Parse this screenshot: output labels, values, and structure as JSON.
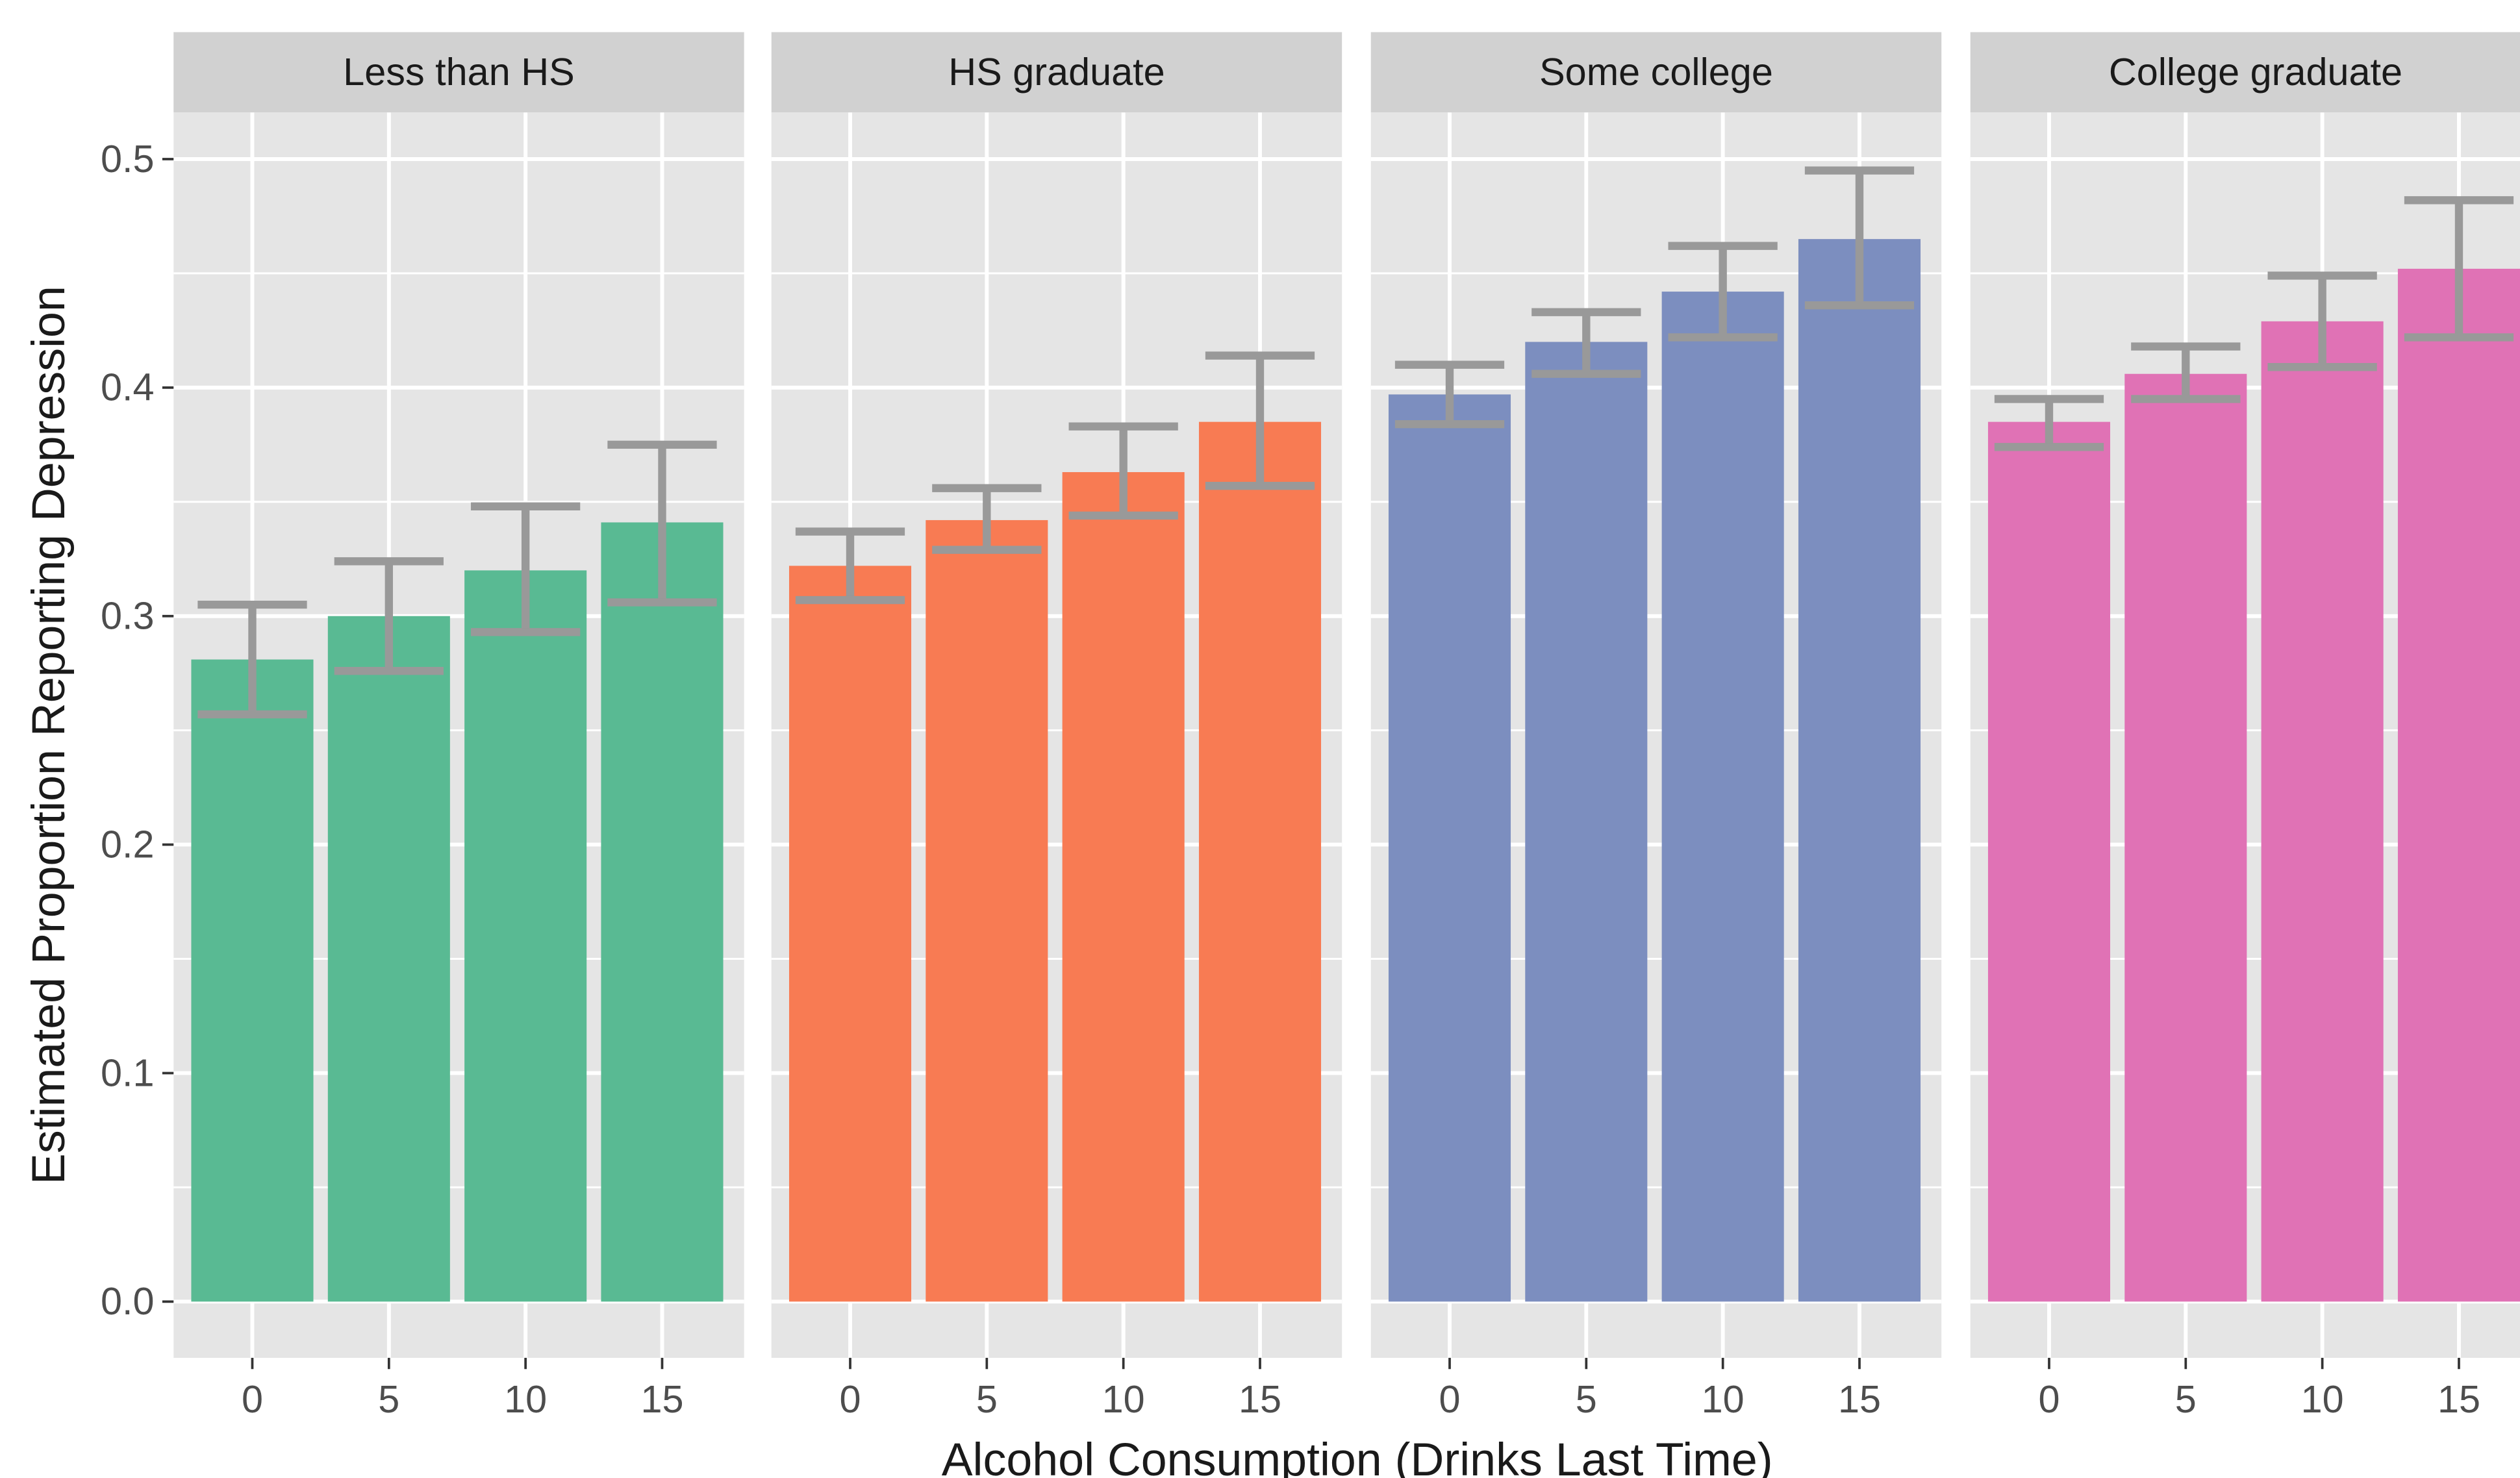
{
  "chart_data": {
    "type": "bar",
    "title": "",
    "xlabel": "Alcohol Consumption (Drinks Last Time)",
    "ylabel": "Estimated Proportion Reporting Depression",
    "ylim": [
      0.0,
      0.5
    ],
    "yticks": [
      "0.0",
      "0.1",
      "0.2",
      "0.3",
      "0.4",
      "0.5"
    ],
    "categories": [
      "0",
      "5",
      "10",
      "15"
    ],
    "grid": true,
    "legend": "none",
    "panels": [
      {
        "label": "Less than HS",
        "color": "#59BA93",
        "values": [
          0.281,
          0.3,
          0.32,
          0.341
        ],
        "ci_low": [
          0.257,
          0.276,
          0.293,
          0.306
        ],
        "ci_high": [
          0.305,
          0.324,
          0.348,
          0.375
        ]
      },
      {
        "label": "HS graduate",
        "color": "#F87B53",
        "values": [
          0.322,
          0.342,
          0.363,
          0.385
        ],
        "ci_low": [
          0.307,
          0.329,
          0.344,
          0.357
        ],
        "ci_high": [
          0.337,
          0.356,
          0.383,
          0.414
        ]
      },
      {
        "label": "Some college",
        "color": "#7C8EBF",
        "values": [
          0.397,
          0.42,
          0.442,
          0.465
        ],
        "ci_low": [
          0.384,
          0.406,
          0.422,
          0.436
        ],
        "ci_high": [
          0.41,
          0.433,
          0.462,
          0.495
        ]
      },
      {
        "label": "College graduate",
        "color": "#E072B5",
        "values": [
          0.385,
          0.406,
          0.429,
          0.452
        ],
        "ci_low": [
          0.374,
          0.395,
          0.409,
          0.422
        ],
        "ci_high": [
          0.395,
          0.418,
          0.449,
          0.482
        ]
      }
    ],
    "colors": {
      "panel_bg": "#E5E5E5",
      "strip_bg": "#D1D1D1",
      "grid": "#FFFFFF",
      "error_bar": "#999999",
      "text": "#1A1A1A",
      "tick_text": "#4D4D4D"
    }
  }
}
